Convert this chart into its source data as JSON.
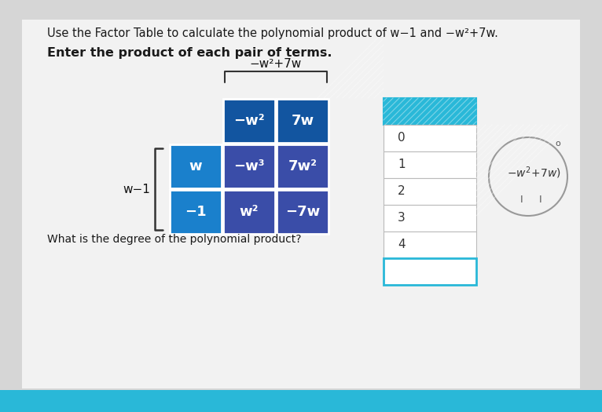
{
  "bg_color": "#d6d6d6",
  "content_bg": "#f0f0f0",
  "title_line1": "Use the Factor Table to calculate the polynomial product of w−1 and −w²+7w.",
  "title_line2": "Enter the product of each pair of terms.",
  "bracket_label": "−w²+7w",
  "left_label": "w−1",
  "table": {
    "header_row": [
      "−w²",
      "7w"
    ],
    "row1_label": "w",
    "row1_vals": [
      "−w³",
      "7w²"
    ],
    "row2_label": "−1",
    "row2_vals": [
      "w²",
      "−7w"
    ]
  },
  "dropdown_label": "What is the degree of the polynomial product?",
  "dropdown_options": [
    "0",
    "1",
    "2",
    "3",
    "4"
  ],
  "dropdown_header_color": "#29b8d8",
  "header_cell_color": "#1255a0",
  "label_cell_color": "#1a80cc",
  "inner_cell_color": "#3a4da8",
  "cell_text_color": "#ffffff",
  "dropdown_border_color": "#29b8d8",
  "circle_label": "−w²+7w)"
}
